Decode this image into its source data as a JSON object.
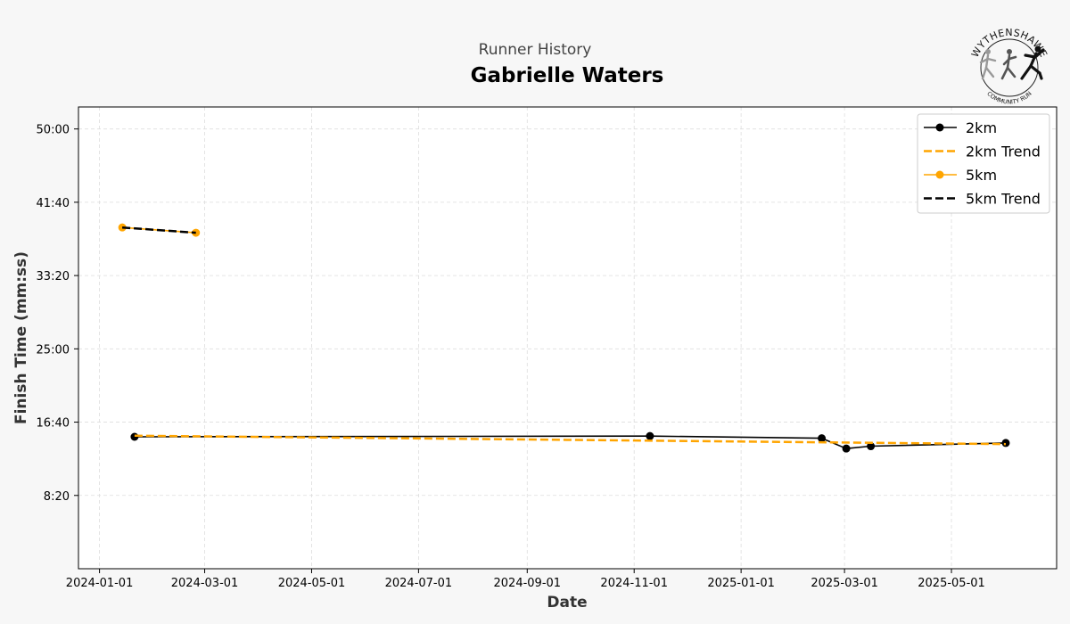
{
  "header": {
    "subtitle": "Runner History",
    "runner_name": "Gabrielle Waters"
  },
  "logo": {
    "text_top": "WYTHENSHAWE",
    "text_bottom": "COMMUNITY RUN"
  },
  "colors": {
    "series_2km": "#000000",
    "series_5km": "#ffa500",
    "grid": "#dddddd",
    "page_bg": "#f7f7f7",
    "plot_bg": "#ffffff"
  },
  "chart_data": {
    "type": "line",
    "xlabel": "Date",
    "ylabel": "Finish Time (mm:ss)",
    "xlim": [
      "2023-12-20",
      "2025-06-30"
    ],
    "ylim_seconds": [
      0,
      3150
    ],
    "x_ticks": [
      "2024-01-01",
      "2024-03-01",
      "2024-05-01",
      "2024-07-01",
      "2024-09-01",
      "2024-11-01",
      "2025-01-01",
      "2025-03-01",
      "2025-05-01"
    ],
    "y_ticks": [
      {
        "seconds": 500,
        "label": "8:20"
      },
      {
        "seconds": 1000,
        "label": "16:40"
      },
      {
        "seconds": 1500,
        "label": "25:00"
      },
      {
        "seconds": 2000,
        "label": "33:20"
      },
      {
        "seconds": 2500,
        "label": "41:40"
      },
      {
        "seconds": 3000,
        "label": "50:00"
      }
    ],
    "grid": true,
    "legend_position": "top-right",
    "series": [
      {
        "name": "2km",
        "style": "solid-marker",
        "color": "#000000",
        "points": [
          {
            "date": "2024-01-21",
            "seconds": 900
          },
          {
            "date": "2024-11-10",
            "seconds": 905
          },
          {
            "date": "2025-02-16",
            "seconds": 890
          },
          {
            "date": "2025-03-02",
            "seconds": 820
          },
          {
            "date": "2025-03-16",
            "seconds": 836
          },
          {
            "date": "2025-06-01",
            "seconds": 858
          }
        ]
      },
      {
        "name": "2km Trend",
        "style": "dashed",
        "color": "#ffa500",
        "points": [
          {
            "date": "2024-01-21",
            "seconds": 907
          },
          {
            "date": "2025-06-01",
            "seconds": 850
          }
        ]
      },
      {
        "name": "5km",
        "style": "solid-marker",
        "color": "#ffa500",
        "points": [
          {
            "date": "2024-01-14",
            "seconds": 2328
          },
          {
            "date": "2024-02-25",
            "seconds": 2292
          }
        ]
      },
      {
        "name": "5km Trend",
        "style": "dashed",
        "color": "#000000",
        "points": [
          {
            "date": "2024-01-14",
            "seconds": 2328
          },
          {
            "date": "2024-02-25",
            "seconds": 2292
          }
        ]
      }
    ]
  }
}
